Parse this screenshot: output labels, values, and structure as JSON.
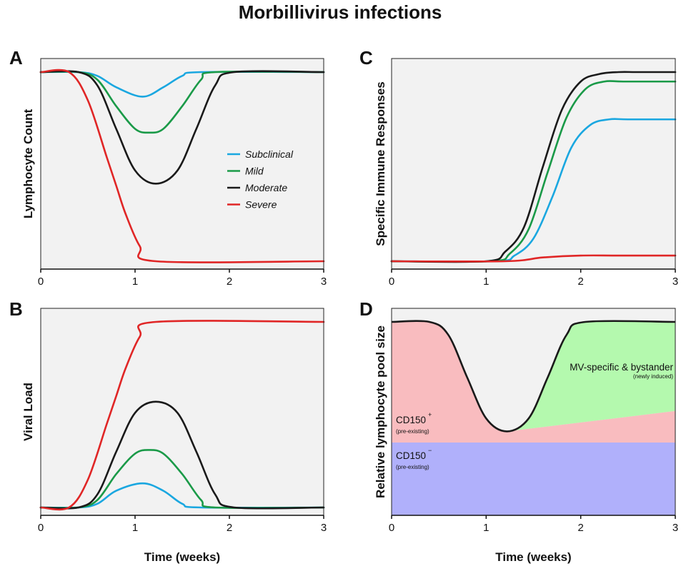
{
  "title": "Morbillivirus infections",
  "colors": {
    "subclinical": "#1aa7e0",
    "mild": "#1a9a48",
    "moderate": "#1a1a1a",
    "severe": "#e02626",
    "plot_bg": "#f2f2f2",
    "cd150_plus": "#f9bcbf",
    "cd150_minus": "#b0b0fb",
    "mv_specific": "#b4f9ae"
  },
  "chart_data": [
    {
      "id": "A",
      "panel_label": "A",
      "type": "line",
      "ylabel": "Lymphocyte Count",
      "xlabel": "",
      "xlim": [
        0,
        3
      ],
      "ylim": [
        0,
        1.1
      ],
      "xticks": [
        "0",
        "1",
        "2",
        "3"
      ],
      "legend_position": "center-right",
      "series": [
        {
          "name": "Subclinical",
          "color_key": "subclinical",
          "x": [
            0,
            0.4,
            0.6,
            0.8,
            1.08,
            1.3,
            1.5,
            1.7,
            3
          ],
          "y": [
            1.0,
            1.0,
            0.98,
            0.92,
            0.87,
            0.92,
            0.98,
            1.0,
            1.0
          ]
        },
        {
          "name": "Mild",
          "color_key": "mild",
          "x": [
            0,
            0.4,
            0.6,
            0.8,
            1.0,
            1.15,
            1.3,
            1.5,
            1.7,
            1.85,
            3
          ],
          "y": [
            1.0,
            1.0,
            0.96,
            0.82,
            0.7,
            0.68,
            0.7,
            0.82,
            0.96,
            1.0,
            1.0
          ]
        },
        {
          "name": "Moderate",
          "color_key": "moderate",
          "x": [
            0,
            0.4,
            0.6,
            0.8,
            1.0,
            1.22,
            1.45,
            1.65,
            1.85,
            2.05,
            3
          ],
          "y": [
            1.0,
            1.0,
            0.93,
            0.7,
            0.48,
            0.41,
            0.48,
            0.7,
            0.93,
            1.0,
            1.0
          ]
        },
        {
          "name": "Severe",
          "color_key": "severe",
          "x": [
            0,
            0.3,
            0.5,
            0.7,
            0.8,
            0.9,
            1.05,
            1.22,
            3
          ],
          "y": [
            1.0,
            1.0,
            0.85,
            0.55,
            0.4,
            0.25,
            0.08,
            0.0,
            0.0
          ]
        }
      ]
    },
    {
      "id": "B",
      "panel_label": "B",
      "type": "line",
      "ylabel": "Viral Load",
      "xlabel": "Time (weeks)",
      "xlim": [
        0,
        3
      ],
      "ylim": [
        0,
        1.1
      ],
      "xticks": [
        "0",
        "1",
        "2",
        "3"
      ],
      "series": [
        {
          "name": "Subclinical",
          "color_key": "subclinical",
          "x": [
            0,
            0.4,
            0.6,
            0.8,
            1.08,
            1.3,
            1.5,
            1.7,
            3
          ],
          "y": [
            0.0,
            0.0,
            0.02,
            0.09,
            0.13,
            0.09,
            0.02,
            0.0,
            0.0
          ]
        },
        {
          "name": "Mild",
          "color_key": "mild",
          "x": [
            0,
            0.4,
            0.6,
            0.8,
            1.0,
            1.15,
            1.3,
            1.5,
            1.7,
            1.85,
            3
          ],
          "y": [
            0.0,
            0.0,
            0.04,
            0.18,
            0.29,
            0.31,
            0.29,
            0.18,
            0.04,
            0.0,
            0.0
          ]
        },
        {
          "name": "Moderate",
          "color_key": "moderate",
          "x": [
            0,
            0.4,
            0.6,
            0.8,
            1.0,
            1.22,
            1.45,
            1.65,
            1.85,
            2.05,
            3
          ],
          "y": [
            0.0,
            0.0,
            0.07,
            0.3,
            0.51,
            0.57,
            0.51,
            0.3,
            0.07,
            0.0,
            0.0
          ]
        },
        {
          "name": "Severe",
          "color_key": "severe",
          "x": [
            0,
            0.3,
            0.5,
            0.7,
            0.8,
            0.9,
            1.05,
            1.22,
            3
          ],
          "y": [
            0.0,
            0.0,
            0.15,
            0.45,
            0.6,
            0.75,
            0.92,
            1.0,
            1.0
          ]
        }
      ]
    },
    {
      "id": "C",
      "panel_label": "C",
      "type": "line",
      "ylabel": "Specific Immune Responses",
      "xlabel": "",
      "xlim": [
        0,
        3
      ],
      "ylim": [
        0,
        1.1
      ],
      "xticks": [
        "0",
        "1",
        "2",
        "3"
      ],
      "series": [
        {
          "name": "Subclinical",
          "color_key": "subclinical",
          "x": [
            0,
            1.1,
            1.3,
            1.5,
            1.7,
            1.9,
            2.1,
            2.3,
            2.5,
            3
          ],
          "y": [
            0.0,
            0.0,
            0.03,
            0.12,
            0.34,
            0.6,
            0.72,
            0.75,
            0.75,
            0.75
          ]
        },
        {
          "name": "Mild",
          "color_key": "mild",
          "x": [
            0,
            1.05,
            1.25,
            1.45,
            1.65,
            1.85,
            2.05,
            2.25,
            2.45,
            3
          ],
          "y": [
            0.0,
            0.0,
            0.04,
            0.17,
            0.47,
            0.76,
            0.91,
            0.95,
            0.95,
            0.95
          ]
        },
        {
          "name": "Moderate",
          "color_key": "moderate",
          "x": [
            0,
            1.0,
            1.2,
            1.4,
            1.6,
            1.8,
            2.0,
            2.2,
            2.4,
            2.6,
            3
          ],
          "y": [
            0.0,
            0.0,
            0.05,
            0.18,
            0.5,
            0.8,
            0.95,
            0.99,
            1.0,
            1.0,
            1.0
          ]
        },
        {
          "name": "Severe",
          "color_key": "severe",
          "x": [
            0,
            1.2,
            1.6,
            2.0,
            2.4,
            3
          ],
          "y": [
            0.0,
            0.0,
            0.02,
            0.03,
            0.03,
            0.03
          ]
        }
      ]
    },
    {
      "id": "D",
      "panel_label": "D",
      "type": "area",
      "ylabel": "Relative lymphocyte pool size",
      "xlabel": "Time (weeks)",
      "xlim": [
        0,
        3
      ],
      "ylim": [
        0,
        1.1
      ],
      "xticks": [
        "0",
        "1",
        "2",
        "3"
      ],
      "cd150_minus_level": 0.35,
      "cd150_plus_line": {
        "x": [
          1.22,
          3
        ],
        "y": [
          0.4,
          0.52
        ]
      },
      "outline": {
        "x": [
          0,
          0.4,
          0.6,
          0.8,
          1.0,
          1.22,
          1.45,
          1.65,
          1.85,
          2.05,
          3
        ],
        "y": [
          1.0,
          1.0,
          0.93,
          0.7,
          0.48,
          0.41,
          0.48,
          0.7,
          0.93,
          1.0,
          1.0
        ]
      },
      "regions": {
        "mv_specific": {
          "label": "MV-specific & bystander",
          "sublabel": "(newly induced)"
        },
        "cd150_plus": {
          "label": "CD150",
          "sup": "+",
          "sublabel": "(pre-existing)"
        },
        "cd150_minus": {
          "label": "CD150",
          "sup": "−",
          "sublabel": "(pre-existing)"
        }
      }
    }
  ]
}
